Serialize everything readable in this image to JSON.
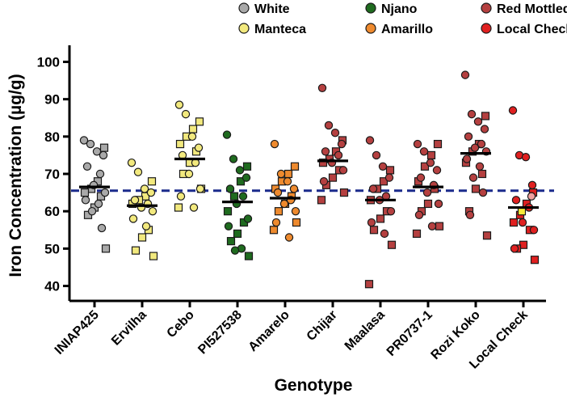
{
  "chart_data": {
    "type": "scatter",
    "subtype": "dot-plot",
    "title": "",
    "xlabel": "Genotype",
    "ylabel": "Iron Concentration (µg/g)",
    "ylim": [
      36,
      104
    ],
    "yticks": [
      40,
      50,
      60,
      70,
      80,
      90,
      100
    ],
    "reference_line": {
      "value": 65.5,
      "style": "dashed",
      "color": "#1a2a8c"
    },
    "legend": {
      "position": "top-right",
      "entries": [
        {
          "label": "White",
          "color": "#a9a9a9"
        },
        {
          "label": "Manteca",
          "color": "#f2e97e"
        },
        {
          "label": "Njano",
          "color": "#1f6b1f"
        },
        {
          "label": "Amarillo",
          "color": "#ee8a2e"
        },
        {
          "label": "Red Mottled",
          "color": "#b54040"
        },
        {
          "label": "Local Check",
          "color": "#e02020"
        }
      ]
    },
    "categories": [
      "INIAP425",
      "Ervilha",
      "Cebo",
      "PI527538",
      "Amarelo",
      "Chijar",
      "Maalasa",
      "PR0737-1",
      "Rozi Koko",
      "Local Check"
    ],
    "series": [
      {
        "name": "INIAP425",
        "class": "White",
        "color": "#a9a9a9",
        "mean": 66.5,
        "circles": [
          79,
          78,
          76,
          75,
          72,
          70,
          67,
          65,
          63,
          62,
          60,
          55.5
        ],
        "squares": [
          77,
          68,
          66,
          65,
          64,
          61,
          59,
          50
        ]
      },
      {
        "name": "Ervilha",
        "class": "Manteca",
        "color": "#f2e97e",
        "mean": 61.5,
        "circles": [
          73,
          70.5,
          66,
          65,
          63,
          62,
          61,
          60,
          58,
          56
        ],
        "squares": [
          68,
          64,
          63,
          62,
          55,
          53,
          49.5,
          48
        ]
      },
      {
        "name": "Cebo",
        "class": "Manteca",
        "color": "#f2e97e",
        "mean": 74,
        "circles": [
          88.5,
          86,
          80,
          77,
          75,
          73,
          70,
          66,
          64,
          61
        ],
        "squares": [
          84,
          82,
          80,
          78,
          76,
          73,
          70,
          66,
          61
        ]
      },
      {
        "name": "PI527538",
        "class": "Njano",
        "color": "#1f6b1f",
        "mean": 62.5,
        "circles": [
          80.5,
          74,
          71,
          69,
          66,
          64,
          62,
          58,
          56,
          50,
          49.5
        ],
        "squares": [
          72,
          68,
          64,
          60,
          57,
          54,
          52,
          48
        ]
      },
      {
        "name": "Amarelo",
        "class": "Amarillo",
        "color": "#ee8a2e",
        "mean": 63.5,
        "circles": [
          78,
          70,
          68,
          66,
          65,
          63,
          62,
          60,
          57,
          53
        ],
        "squares": [
          72,
          70,
          68,
          66,
          64,
          62,
          60,
          57,
          55
        ]
      },
      {
        "name": "Chijar",
        "class": "Red Mottled",
        "color": "#b54040",
        "mean": 73.5,
        "circles": [
          93,
          83,
          81,
          78,
          76,
          75,
          73,
          71,
          68
        ],
        "squares": [
          79,
          76,
          74,
          73,
          71,
          69,
          67,
          65,
          63
        ]
      },
      {
        "name": "Maalasa",
        "class": "Red Mottled",
        "color": "#b54040",
        "mean": 63,
        "circles": [
          79,
          75,
          72,
          69,
          66,
          64,
          63,
          60,
          57,
          54
        ],
        "squares": [
          71,
          68,
          66,
          63,
          60,
          58,
          55,
          51,
          40.5
        ]
      },
      {
        "name": "PR0737-1",
        "class": "Red Mottled",
        "color": "#b54040",
        "mean": 66.5,
        "circles": [
          78,
          76,
          73,
          71,
          69,
          67,
          65,
          62,
          59,
          56
        ],
        "squares": [
          78,
          75,
          72,
          68,
          66,
          62,
          60,
          56,
          54
        ]
      },
      {
        "name": "Rozi Koko",
        "class": "Red Mottled",
        "color": "#b54040",
        "mean": 75.5,
        "circles": [
          96.5,
          86,
          84,
          82,
          80,
          78,
          77,
          76,
          74,
          72,
          69,
          65,
          59
        ],
        "squares": [
          85.5,
          78,
          76,
          73,
          70,
          66,
          60,
          53.5
        ]
      },
      {
        "name": "Local Check",
        "class": "Local Check",
        "color": "#e02020",
        "mean": 61,
        "circles": [
          87,
          75,
          74.5,
          67,
          63,
          61,
          57,
          55,
          50
        ],
        "squares": [
          65,
          62,
          59,
          57,
          55,
          51,
          50,
          47
        ],
        "extra_circles": [
          {
            "value": 64,
            "color": "#f0a0a0"
          }
        ],
        "extra_squares": [
          {
            "value": 60,
            "color": "#f7ea3a"
          }
        ]
      }
    ]
  }
}
